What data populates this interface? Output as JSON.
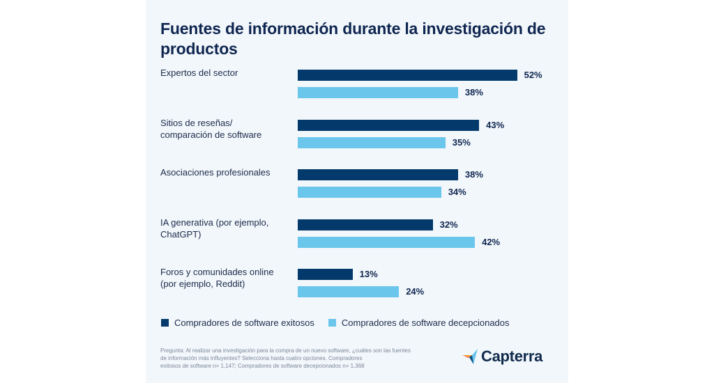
{
  "colors": {
    "exitosos": "#033a6b",
    "decepcionados": "#6bc6ec",
    "background": "#f2f7fb",
    "title": "#0f2650"
  },
  "chart_data": {
    "type": "bar",
    "orientation": "horizontal",
    "title": "Fuentes de información durante la investigación de productos",
    "categories": [
      "Expertos del sector",
      "Sitios de reseñas/ comparación de software",
      "Asociaciones profesionales",
      "IA generativa (por ejemplo, ChatGPT)",
      "Foros y comunidades online (por ejemplo, Reddit)"
    ],
    "category_lines": [
      [
        "Expertos del sector"
      ],
      [
        "Sitios de reseñas/",
        "comparación de software"
      ],
      [
        "Asociaciones profesionales"
      ],
      [
        "IA generativa (por ejemplo,",
        "ChatGPT)"
      ],
      [
        "Foros y comunidades online",
        "(por ejemplo, Reddit)"
      ]
    ],
    "series": [
      {
        "name": "Compradores de software exitosos",
        "values": [
          52,
          43,
          38,
          32,
          13
        ],
        "labels": [
          "52%",
          "43%",
          "38%",
          "32%",
          "13%"
        ]
      },
      {
        "name": "Compradores de software decepcionados",
        "values": [
          38,
          35,
          34,
          42,
          24
        ],
        "labels": [
          "38%",
          "35%",
          "34%",
          "42%",
          "24%"
        ]
      }
    ],
    "xlabel": "",
    "ylabel": "",
    "xlim": [
      0,
      60
    ],
    "grid": false,
    "legend_position": "bottom-left",
    "value_unit": "%"
  },
  "footnote": {
    "lines": [
      "Pregunta: Al realizar una investigación para la compra de un nuevo software, ¿cuáles son las fuentes",
      "de información más influyentes? Selecciona hasta cuatro opciones. Compradores",
      "exitosos de software n= 1,147; Compradores de software decepcionados n= 1,368"
    ]
  },
  "brand": {
    "name": "Capterra",
    "icon": "capterra-arrow-logo-icon"
  }
}
